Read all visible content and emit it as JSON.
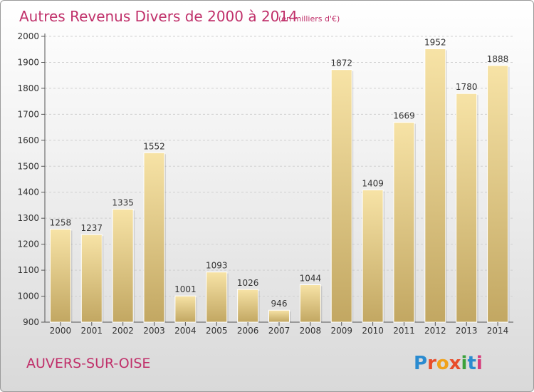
{
  "chart_data": {
    "type": "bar",
    "title": "Autres Revenus Divers de 2000 à 2014",
    "subtitle": "(en milliers d'€)",
    "categories": [
      "2000",
      "2001",
      "2002",
      "2003",
      "2004",
      "2005",
      "2006",
      "2007",
      "2008",
      "2009",
      "2010",
      "2011",
      "2012",
      "2013",
      "2014"
    ],
    "values": [
      1258,
      1237,
      1335,
      1552,
      1001,
      1093,
      1026,
      946,
      1044,
      1872,
      1409,
      1669,
      1952,
      1780,
      1888
    ],
    "ylim": [
      900,
      2000
    ],
    "yticks": [
      "900",
      "1000",
      "1100",
      "1200",
      "1300",
      "1400",
      "1500",
      "1600",
      "1700",
      "1800",
      "1900",
      "2000"
    ],
    "grid": true,
    "bar_color": "#e8cf82",
    "bar_color_light": "#f7e3a6",
    "bar_color_dark": "#c2a762"
  },
  "footer": {
    "city": "AUVERS-SUR-OISE",
    "logo_text": "Proxiti",
    "logo_colors": [
      "#2a8bd0",
      "#e84c2a",
      "#f0a21a",
      "#e84c2a",
      "#3aa13a",
      "#2a8bd0",
      "#d63a7a"
    ]
  }
}
